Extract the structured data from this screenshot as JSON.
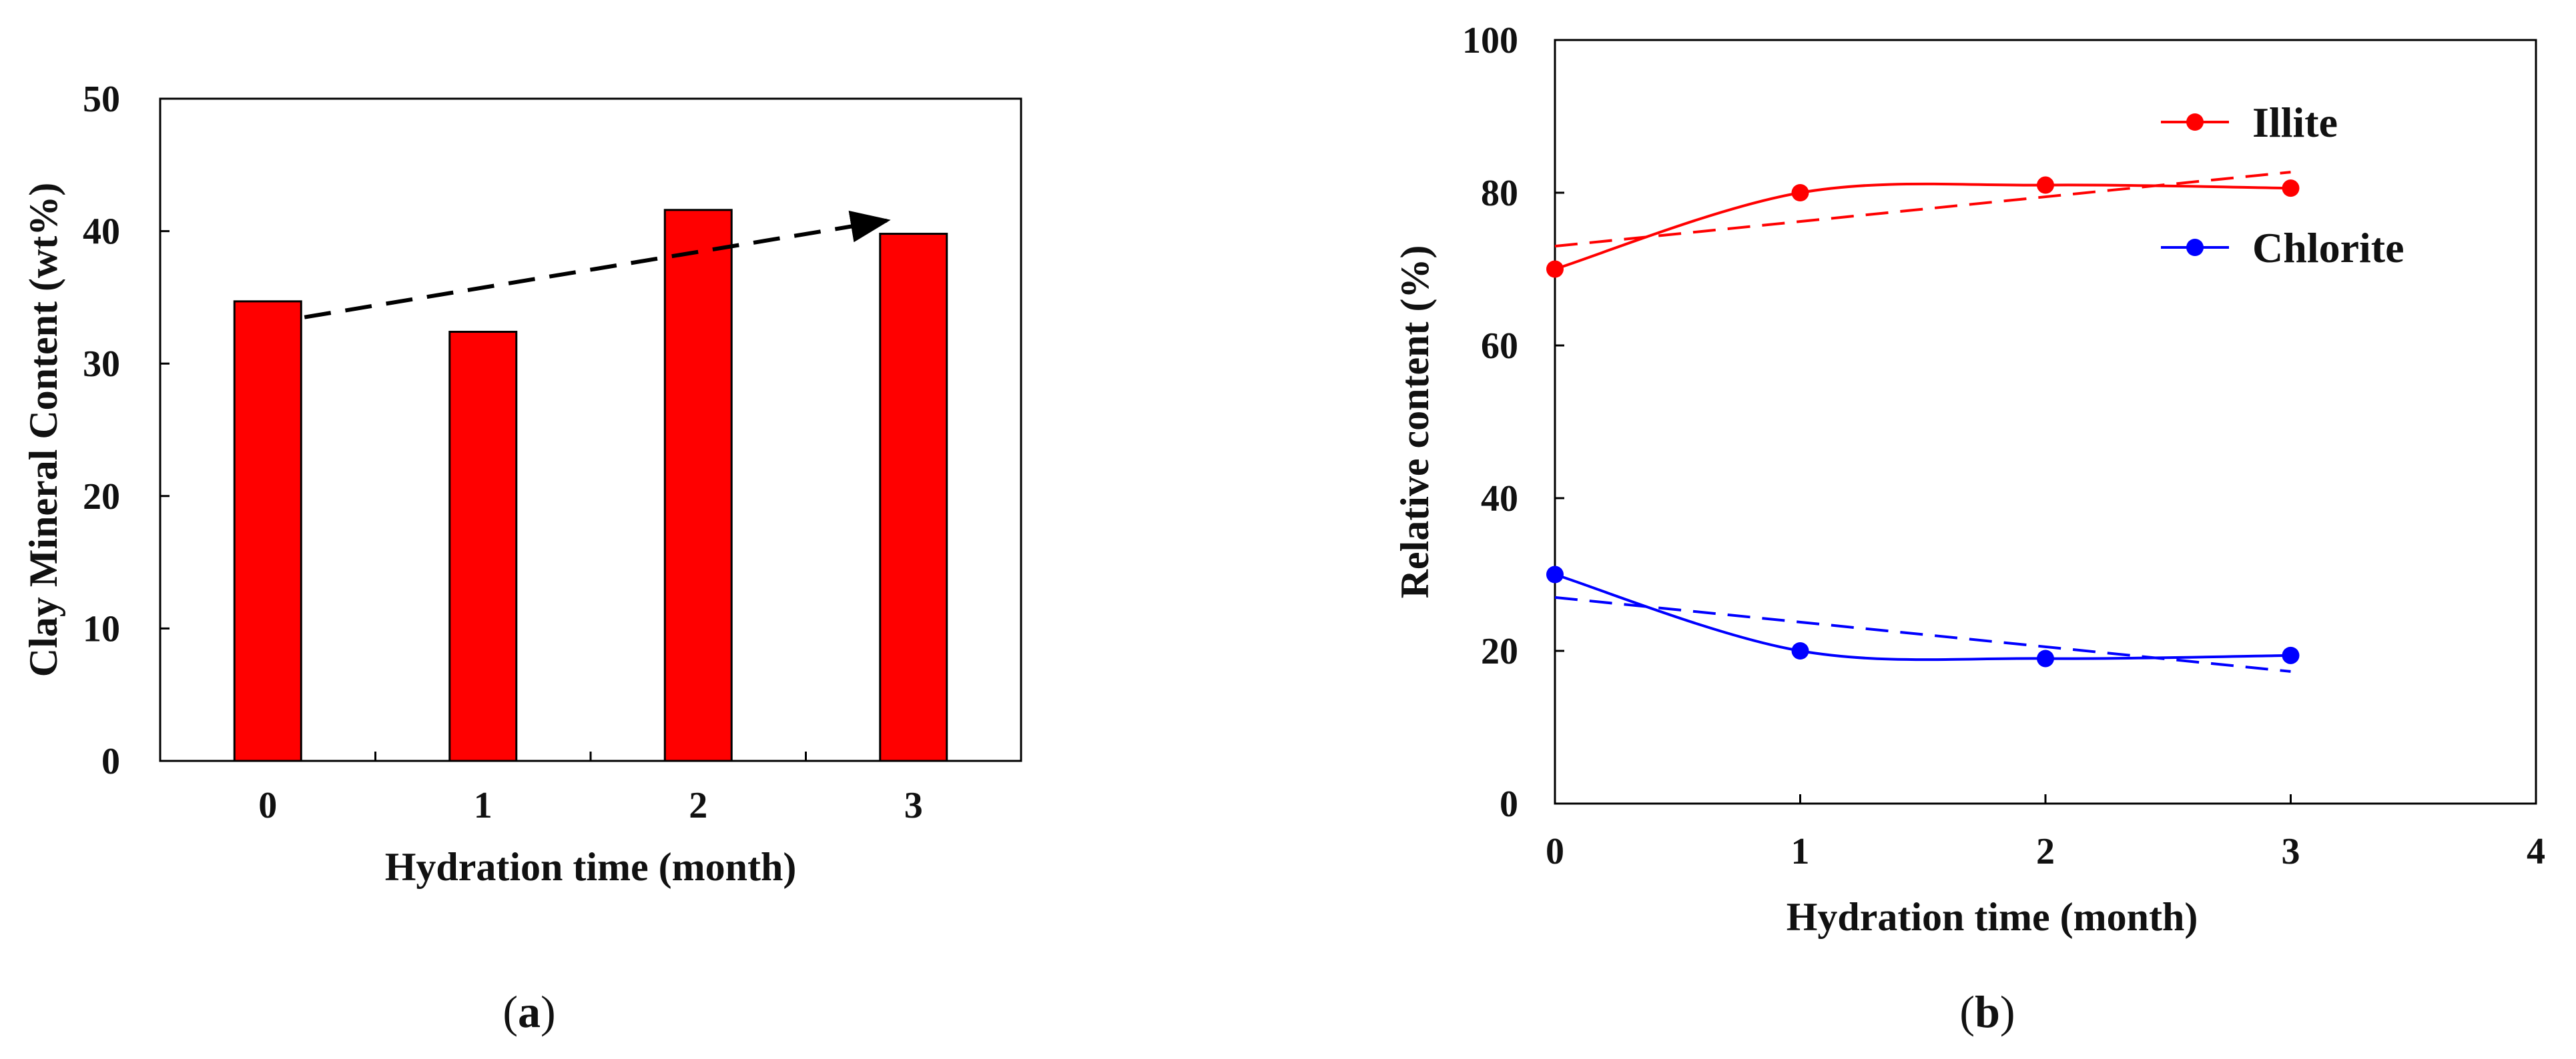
{
  "chart_data": [
    {
      "type": "bar",
      "panel_label": "a",
      "categories": [
        "0",
        "1",
        "2",
        "3"
      ],
      "values": [
        34.7,
        32.4,
        41.6,
        39.8
      ],
      "bar_color": "#ff0000",
      "xlabel": "Hydration time (month)",
      "ylabel": "Clay Mineral Content (wt%)",
      "ylim": [
        0,
        50
      ],
      "yticks": [
        "0",
        "10",
        "20",
        "30",
        "40",
        "50"
      ],
      "trend_arrow": {
        "from": {
          "x": 0,
          "y": 33.5
        },
        "to": {
          "x": 3,
          "y": 40.8
        },
        "style": "dashed",
        "color": "#000000"
      }
    },
    {
      "type": "line",
      "panel_label": "b",
      "x": [
        0,
        1,
        2,
        3
      ],
      "xlim": [
        0,
        4
      ],
      "xticks": [
        "0",
        "1",
        "2",
        "3",
        "4"
      ],
      "ylim": [
        0,
        100
      ],
      "yticks": [
        "0",
        "20",
        "40",
        "60",
        "80",
        "100"
      ],
      "xlabel": "Hydration time (month)",
      "ylabel": "Relative content (%)",
      "legend_position": "top-right",
      "series": [
        {
          "name": "Illite",
          "color": "#ff0000",
          "values": [
            70,
            80,
            81,
            80.6
          ],
          "trend": {
            "x": [
              0,
              3
            ],
            "y": [
              73,
              82.7
            ]
          }
        },
        {
          "name": "Chlorite",
          "color": "#0000ff",
          "values": [
            30,
            20,
            19,
            19.4
          ],
          "trend": {
            "x": [
              0,
              3
            ],
            "y": [
              27,
              17.3
            ]
          }
        }
      ]
    }
  ]
}
